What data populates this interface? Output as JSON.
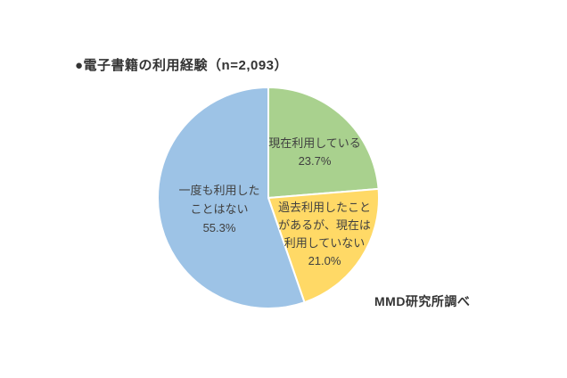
{
  "title": "●電子書籍の利用経験（n=2,093）",
  "source": "MMD研究所調べ",
  "chart_data": {
    "type": "pie",
    "title": "電子書籍の利用経験",
    "sample_size_label": "n=2,093",
    "start_angle_deg": 0,
    "direction": "clockwise",
    "labels_position": "inside",
    "legend": "none",
    "text_color": "#404040",
    "slice_border_color": "#ffffff",
    "slices": [
      {
        "label": "現在利用している",
        "value": 23.7,
        "value_label": "23.7%",
        "color": "#A9D18E",
        "label_lines": [
          "現在利用している"
        ]
      },
      {
        "label": "過去利用したことがあるが、現在は利用していない",
        "value": 21.0,
        "value_label": "21.0%",
        "color": "#FFD966",
        "label_lines": [
          "過去利用したこと",
          "があるが、現在は",
          "利用していない"
        ]
      },
      {
        "label": "一度も利用したことはない",
        "value": 55.3,
        "value_label": "55.3%",
        "color": "#9DC3E6",
        "label_lines": [
          "一度も利用した",
          "ことはない"
        ]
      }
    ]
  }
}
